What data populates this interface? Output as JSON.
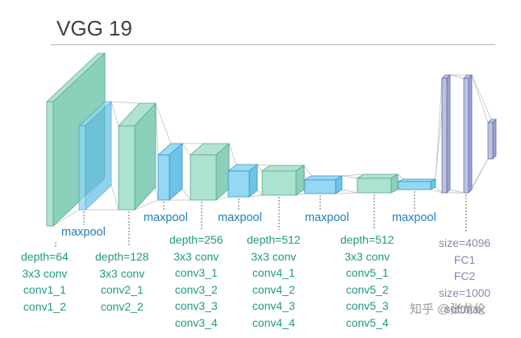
{
  "title": "VGG 19",
  "pool_label": "maxpool",
  "blocks": [
    {
      "depth": "depth=64",
      "conv": "3x3 conv",
      "layers": [
        "conv1_1",
        "conv1_2"
      ]
    },
    {
      "depth": "depth=128",
      "conv": "3x3 conv",
      "layers": [
        "conv2_1",
        "conv2_2"
      ]
    },
    {
      "depth": "depth=256",
      "conv": "3x3 conv",
      "layers": [
        "conv3_1",
        "conv3_2",
        "conv3_3",
        "conv3_4"
      ]
    },
    {
      "depth": "depth=512",
      "conv": "3x3 conv",
      "layers": [
        "conv4_1",
        "conv4_2",
        "conv4_3",
        "conv4_4"
      ]
    },
    {
      "depth": "depth=512",
      "conv": "3x3 conv",
      "layers": [
        "conv5_1",
        "conv5_2",
        "conv5_3",
        "conv5_4"
      ]
    }
  ],
  "fc": [
    "size=4096",
    "FC1",
    "FC2",
    "size=1000",
    "softmax"
  ],
  "watermark": "知乎 @张龙伦",
  "colors": {
    "conv_face": "#a8e0cf",
    "conv_side": "#7ecbb2",
    "conv_edge": "#5aa68e",
    "pool_face": "#8fd6f2",
    "pool_side": "#5dbde6",
    "pool_edge": "#3b94c0",
    "fc_face": "#b8bfe0",
    "fc_side": "#8e97c8",
    "fc_edge": "#6670a8"
  }
}
